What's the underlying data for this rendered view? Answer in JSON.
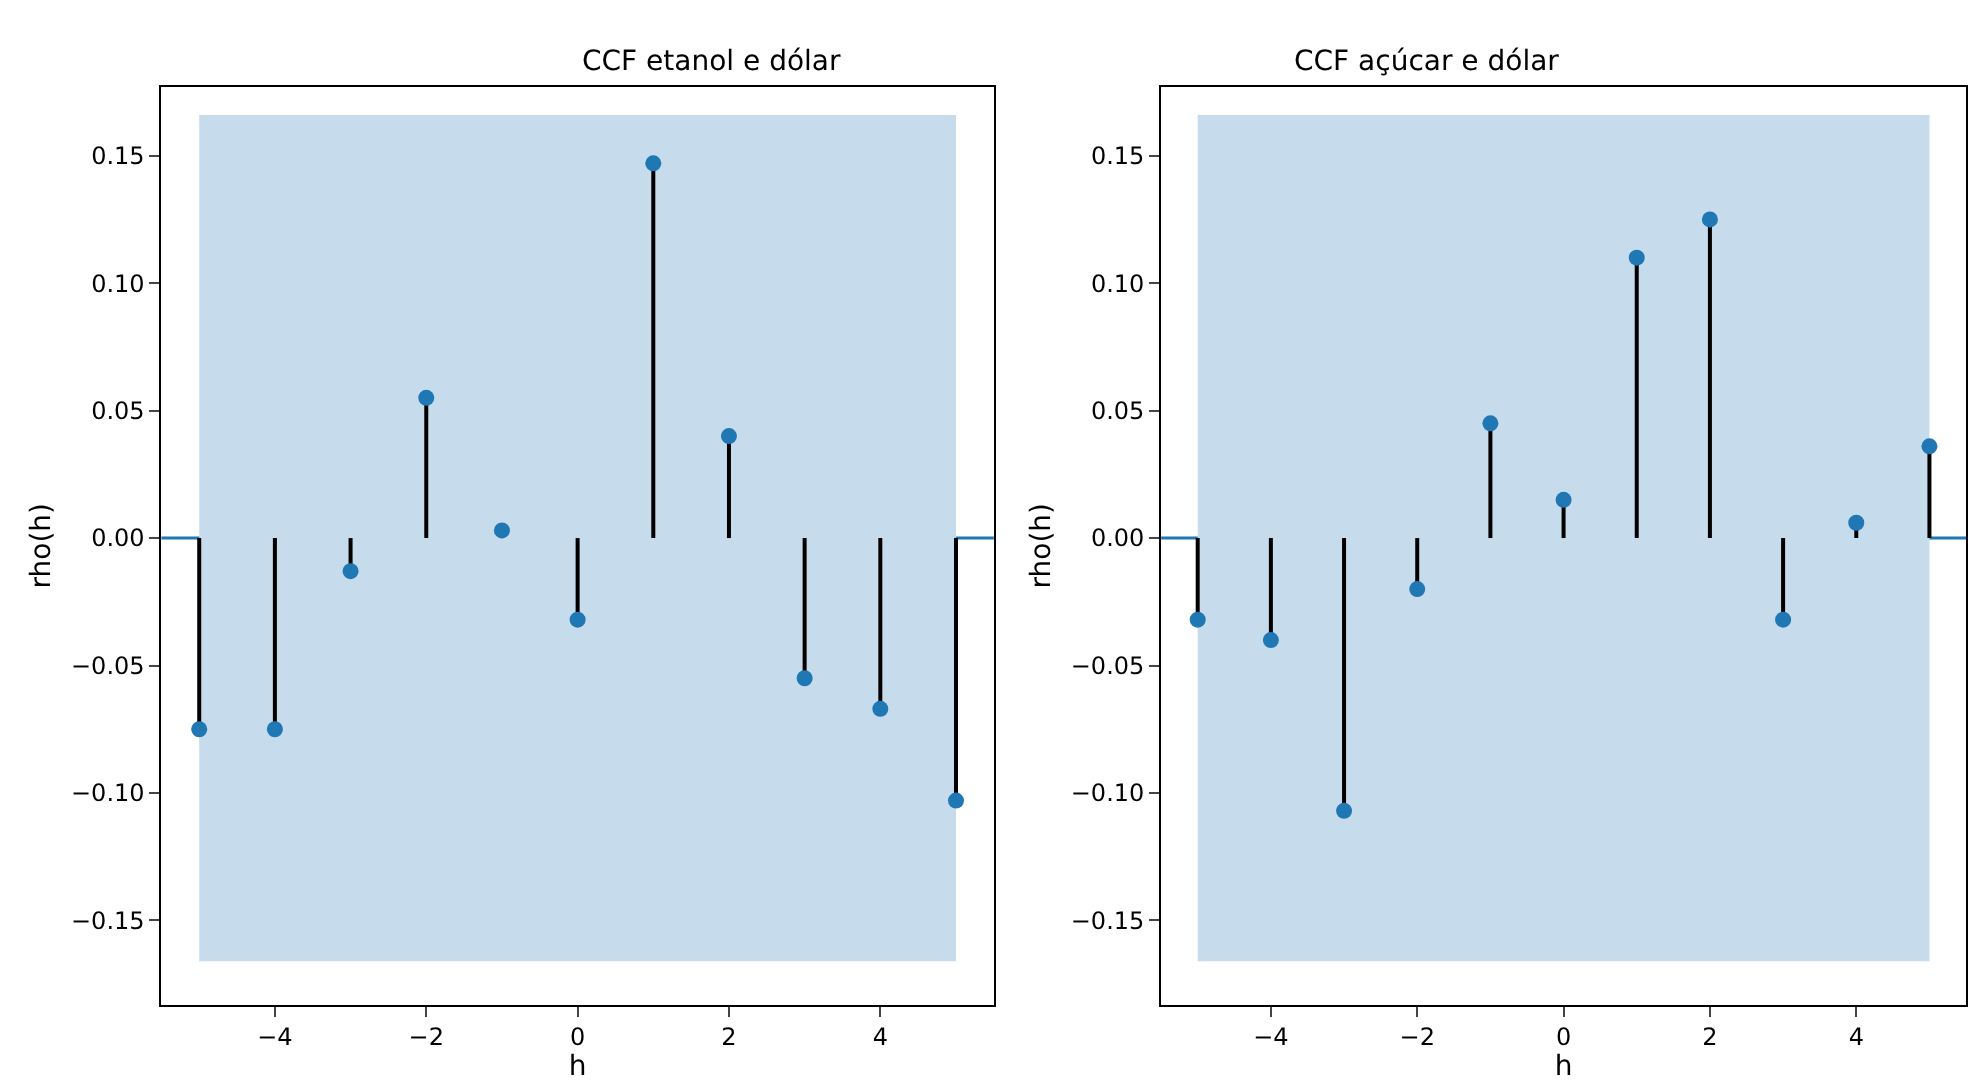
{
  "chart_data": [
    {
      "type": "lollipop",
      "title": "CCF etanol e dólar",
      "xlabel": "h",
      "ylabel": "rho(h)",
      "x": [
        -5,
        -4,
        -3,
        -2,
        -1,
        0,
        1,
        2,
        3,
        4,
        5
      ],
      "series": [
        {
          "color": "#1f77b4",
          "values": [
            -0.075,
            -0.075,
            -0.013,
            0.055,
            0.003,
            -0.032,
            0.147,
            0.04,
            -0.055,
            -0.067,
            -0.103
          ]
        }
      ],
      "xlim": [
        -5.5,
        5.5
      ],
      "xticks": [
        -4,
        -2,
        0,
        2,
        4
      ],
      "ylim": [
        -0.183,
        0.177
      ],
      "yticks": [
        {
          "value": -0.15,
          "label": "−0.15"
        },
        {
          "value": -0.1,
          "label": "−0.10"
        },
        {
          "value": -0.05,
          "label": "−0.05"
        },
        {
          "value": 0,
          "label": "0.00"
        },
        {
          "value": 0.05,
          "label": "0.05"
        },
        {
          "value": 0.1,
          "label": "0.10"
        },
        {
          "value": 0.15,
          "label": "0.15"
        }
      ],
      "ref_lines": [
        {
          "axis": "y",
          "value": 0,
          "color": "#1f77b4"
        }
      ],
      "bands": [
        {
          "axis": "y",
          "from": -0.166,
          "to": 0.166,
          "color": "#c6dbeb"
        }
      ],
      "grid": false,
      "marker": "circle"
    },
    {
      "type": "lollipop",
      "title": "CCF açúcar e dólar",
      "xlabel": "h",
      "ylabel": "rho(h)",
      "x": [
        -5,
        -4,
        -3,
        -2,
        -1,
        0,
        1,
        2,
        3,
        4,
        5
      ],
      "series": [
        {
          "color": "#1f77b4",
          "values": [
            -0.032,
            -0.04,
            -0.107,
            -0.02,
            0.045,
            0.015,
            0.11,
            0.125,
            -0.032,
            0.006,
            0.036
          ]
        }
      ],
      "xlim": [
        -5.5,
        5.5
      ],
      "xticks": [
        -4,
        -2,
        0,
        2,
        4
      ],
      "ylim": [
        -0.183,
        0.177
      ],
      "yticks": [
        {
          "value": -0.15,
          "label": "−0.15"
        },
        {
          "value": -0.1,
          "label": "−0.10"
        },
        {
          "value": -0.05,
          "label": "−0.05"
        },
        {
          "value": 0,
          "label": "0.00"
        },
        {
          "value": 0.05,
          "label": "0.05"
        },
        {
          "value": 0.1,
          "label": "0.10"
        },
        {
          "value": 0.15,
          "label": "0.15"
        }
      ],
      "ref_lines": [
        {
          "axis": "y",
          "value": 0,
          "color": "#1f77b4"
        }
      ],
      "bands": [
        {
          "axis": "y",
          "from": -0.166,
          "to": 0.166,
          "color": "#c6dbeb"
        }
      ],
      "grid": false,
      "marker": "circle"
    }
  ]
}
